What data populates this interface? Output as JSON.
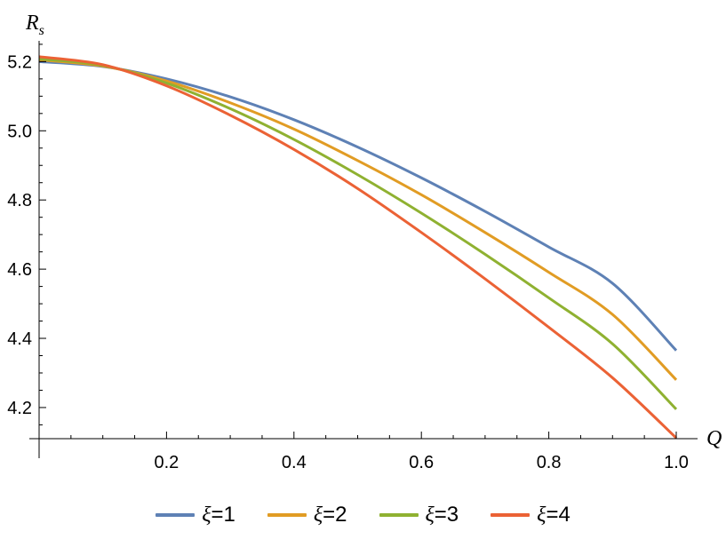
{
  "chart_data": {
    "type": "line",
    "title": "",
    "xlabel": "Q",
    "ylabel_main": "R",
    "ylabel_sub": "s",
    "xlim": [
      0,
      1.0
    ],
    "ylim": [
      4.11,
      5.26
    ],
    "xticks": [
      0.2,
      0.4,
      0.6,
      0.8,
      1.0
    ],
    "xtick_labels": [
      "0.2",
      "0.4",
      "0.6",
      "0.8",
      "1.0"
    ],
    "yticks": [
      4.2,
      4.4,
      4.6,
      4.8,
      5.0,
      5.2
    ],
    "ytick_labels": [
      "4.2",
      "4.4",
      "4.6",
      "4.8",
      "5.0",
      "5.2"
    ],
    "grid": false,
    "legend_position": "bottom",
    "x": [
      0,
      0.1,
      0.2,
      0.3,
      0.4,
      0.5,
      0.6,
      0.7,
      0.8,
      0.9,
      1.0
    ],
    "series": [
      {
        "name": "ξ=1",
        "label_symbol": "ξ",
        "label_value": "=1",
        "color": "#5e81b5",
        "values": [
          5.2,
          5.186,
          5.15,
          5.098,
          5.032,
          4.953,
          4.864,
          4.767,
          4.664,
          4.559,
          4.365
        ]
      },
      {
        "name": "ξ=2",
        "label_symbol": "ξ",
        "label_value": "=2",
        "color": "#e19c24",
        "values": [
          5.205,
          5.187,
          5.144,
          5.081,
          5.005,
          4.914,
          4.815,
          4.706,
          4.591,
          4.469,
          4.28
        ]
      },
      {
        "name": "ξ=3",
        "label_symbol": "ξ",
        "label_value": "=3",
        "color": "#8fb131",
        "values": [
          5.208,
          5.189,
          5.138,
          5.064,
          4.975,
          4.873,
          4.762,
          4.643,
          4.517,
          4.384,
          4.195
        ]
      },
      {
        "name": "ξ=4",
        "label_symbol": "ξ",
        "label_value": "=4",
        "color": "#eb6235",
        "values": [
          5.214,
          5.191,
          5.13,
          5.045,
          4.946,
          4.833,
          4.706,
          4.572,
          4.432,
          4.286,
          4.112
        ]
      }
    ]
  }
}
